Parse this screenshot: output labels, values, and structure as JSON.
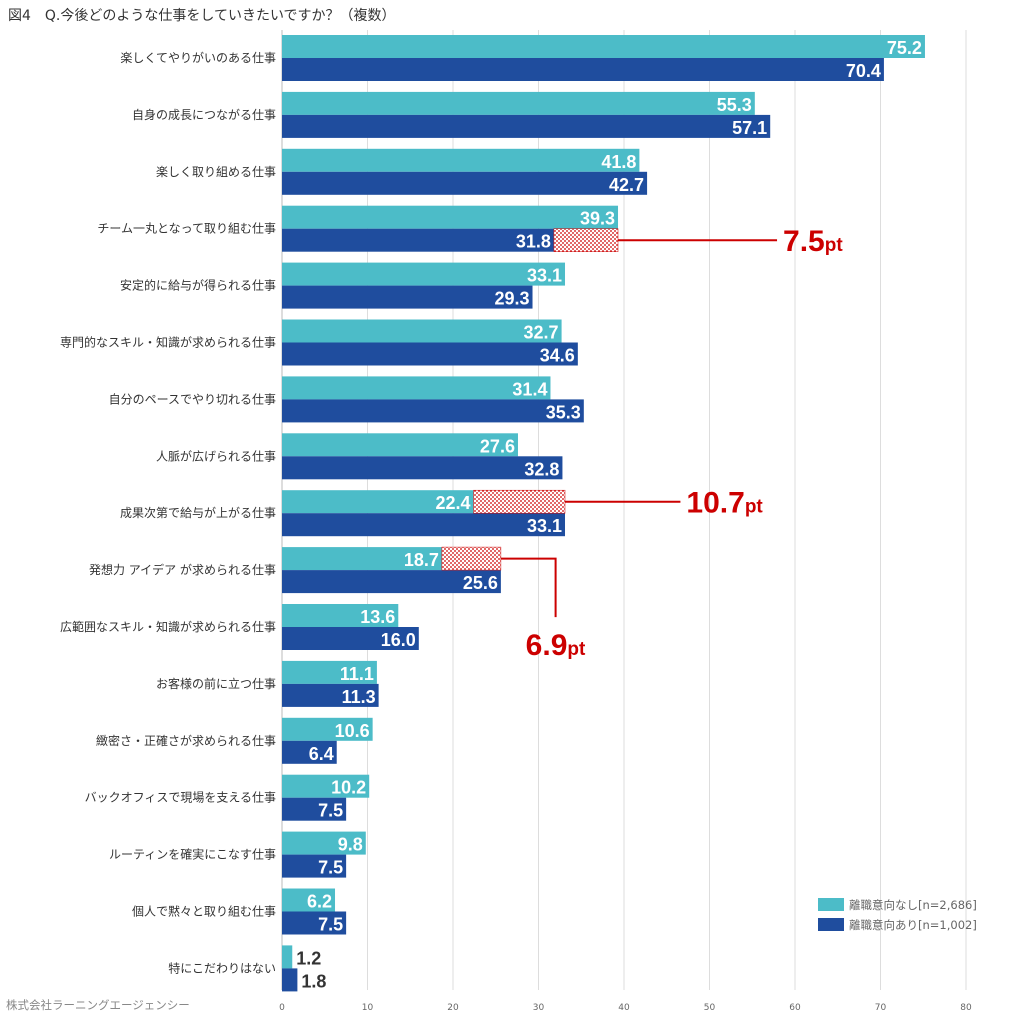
{
  "title": "図4　Q.今後どのような仕事をしていきたいですか？（複数）",
  "credit": "株式会社ラーニングエージェンシー",
  "colors": {
    "series1": "#4cbcc8",
    "series2": "#1f4d9e",
    "highlight": "#cc0000",
    "grid": "#dddddd"
  },
  "chart_data": {
    "type": "bar",
    "orientation": "horizontal",
    "title": "Q.今後どのような仕事をしていきたいですか？（複数）",
    "xlim": [
      0,
      80
    ],
    "ticks": [
      0,
      10,
      20,
      30,
      40,
      50,
      60,
      70,
      80
    ],
    "grid": true,
    "legend_position": "bottom-right",
    "categories": [
      "楽しくてやりがいのある仕事",
      "自身の成長につながる仕事",
      "楽しく取り組める仕事",
      "チーム一丸となって取り組む仕事",
      "安定的に給与が得られる仕事",
      "専門的なスキル・知識が求められる仕事",
      "自分のペースでやり切れる仕事",
      "人脈が広げられる仕事",
      "成果次第で給与が上がる仕事",
      "発想力 アイデア が求められる仕事",
      "広範囲なスキル・知識が求められる仕事",
      "お客様の前に立つ仕事",
      "緻密さ・正確さが求められる仕事",
      "バックオフィスで現場を支える仕事",
      "ルーティンを確実にこなす仕事",
      "個人で黙々と取り組む仕事",
      "特にこだわりはない"
    ],
    "series": [
      {
        "name": "離職意向なし[n=2,686]",
        "values": [
          75.2,
          55.3,
          41.8,
          39.3,
          33.1,
          32.7,
          31.4,
          27.6,
          22.4,
          18.7,
          13.6,
          11.1,
          10.6,
          10.2,
          9.8,
          6.2,
          1.2
        ]
      },
      {
        "name": "離職意向あり[n=1,002]",
        "values": [
          70.4,
          57.1,
          42.7,
          31.8,
          29.3,
          34.6,
          35.3,
          32.8,
          33.1,
          25.6,
          16.0,
          11.3,
          6.4,
          7.5,
          7.5,
          7.5,
          1.8
        ]
      }
    ],
    "annotations": [
      {
        "category_index": 3,
        "from": 31.8,
        "to": 39.3,
        "label_num": "7.5",
        "label_unit": "pt"
      },
      {
        "category_index": 8,
        "from": 22.4,
        "to": 33.1,
        "label_num": "10.7",
        "label_unit": "pt"
      },
      {
        "category_index": 9,
        "from": 18.7,
        "to": 25.6,
        "label_num": "6.9",
        "label_unit": "pt"
      }
    ]
  }
}
